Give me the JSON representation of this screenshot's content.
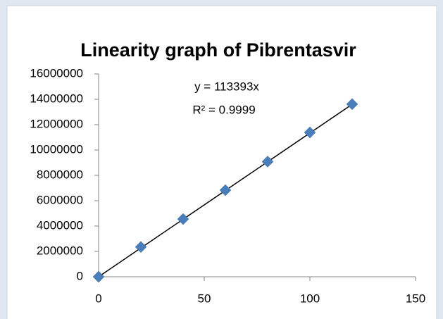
{
  "chart_data": {
    "type": "scatter",
    "title": "Linearity graph of Pibrentasvir",
    "annotations": [
      "y = 113393x",
      "R² = 0.9999"
    ],
    "x": [
      0,
      20,
      40,
      60,
      80,
      100,
      120
    ],
    "series": [
      {
        "name": "Pibrentasvir",
        "color": "#4a7ebb",
        "values": [
          0,
          2350000,
          4550000,
          6830000,
          9080000,
          11380000,
          13620000
        ]
      }
    ],
    "trendline_slope": 113393,
    "xlim": [
      0,
      150
    ],
    "xticks": [
      0,
      50,
      100,
      150
    ],
    "ylim": [
      0,
      16000000
    ],
    "yticks": [
      0,
      2000000,
      4000000,
      6000000,
      8000000,
      10000000,
      12000000,
      14000000,
      16000000
    ],
    "grid": false
  }
}
